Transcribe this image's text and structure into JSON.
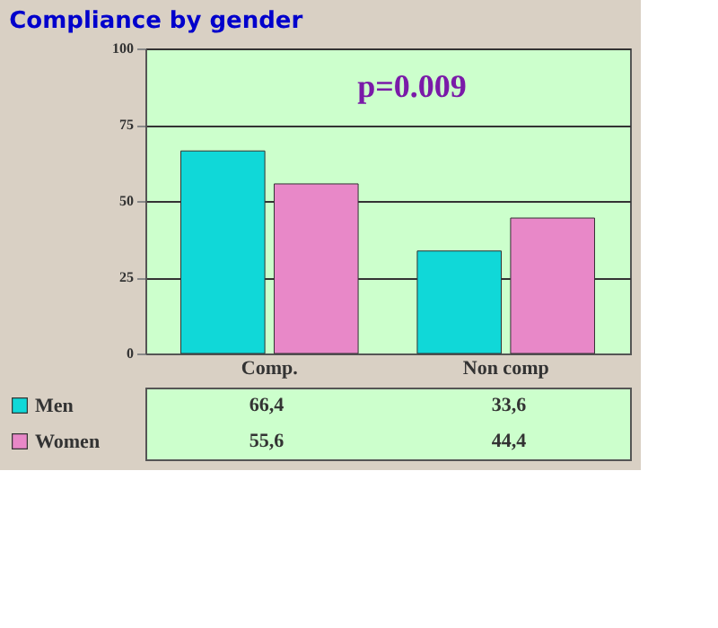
{
  "chart_data": {
    "type": "bar",
    "title": "Compliance by gender",
    "categories": [
      "Comp.",
      "Non comp"
    ],
    "series": [
      {
        "name": "Men",
        "color": "#10d8d8",
        "values": [
          66.4,
          33.6
        ],
        "value_labels": [
          "66,4",
          "33,6"
        ]
      },
      {
        "name": "Women",
        "color": "#e888c8",
        "values": [
          55.6,
          44.4
        ],
        "value_labels": [
          "55,6",
          "44,4"
        ]
      }
    ],
    "ylim": [
      0,
      100
    ],
    "yticks": [
      0,
      25,
      50,
      75,
      100
    ],
    "grid": "y",
    "legend": "bottom left",
    "annotations": [
      {
        "text": "p=0.009"
      }
    ]
  }
}
